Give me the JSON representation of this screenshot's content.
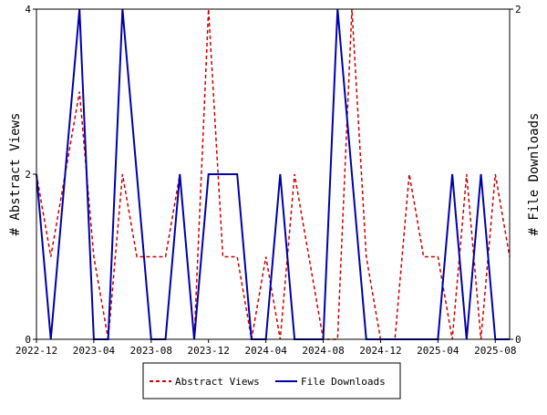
{
  "chart_data": {
    "type": "line",
    "title": "",
    "x": [
      "2022-12",
      "2023-01",
      "2023-02",
      "2023-03",
      "2023-04",
      "2023-05",
      "2023-06",
      "2023-07",
      "2023-08",
      "2023-09",
      "2023-10",
      "2023-11",
      "2023-12",
      "2024-01",
      "2024-02",
      "2024-03",
      "2024-04",
      "2024-05",
      "2024-06",
      "2024-07",
      "2024-08",
      "2024-09",
      "2024-10",
      "2024-11",
      "2024-12",
      "2025-01",
      "2025-02",
      "2025-03",
      "2025-04",
      "2025-05",
      "2025-06",
      "2025-07",
      "2025-08",
      "2025-09"
    ],
    "x_tick_labels": [
      "2022-12",
      "2023-04",
      "2023-08",
      "2023-12",
      "2024-04",
      "2024-08",
      "2024-12",
      "2025-04",
      "2025-08"
    ],
    "y_left": {
      "label": "# Abstract Views",
      "ylim": [
        0,
        4
      ],
      "ticks": [
        "0",
        "2",
        "4"
      ]
    },
    "y_right": {
      "label": "# File Downloads",
      "ylim": [
        0,
        2
      ],
      "ticks": [
        "0",
        "2"
      ]
    },
    "series": [
      {
        "name": "Abstract Views",
        "axis": "left",
        "color": "#cc0000",
        "style": "dashed",
        "values": [
          2,
          1,
          2,
          3,
          1,
          0,
          2,
          1,
          1,
          1,
          2,
          0,
          4,
          1,
          1,
          0,
          1,
          0,
          2,
          1,
          0,
          0,
          4,
          1,
          0,
          0,
          2,
          1,
          1,
          0,
          2,
          0,
          2,
          1
        ]
      },
      {
        "name": "File Downloads",
        "axis": "right",
        "color": "#0000aa",
        "style": "solid",
        "values": [
          1,
          0,
          1,
          2,
          0,
          0,
          2,
          1,
          0,
          0,
          1,
          0,
          1,
          1,
          1,
          0,
          0,
          1,
          0,
          0,
          0,
          2,
          1,
          0,
          0,
          0,
          0,
          0,
          0,
          1,
          0,
          1,
          0,
          0
        ]
      }
    ],
    "grid": false,
    "legend": "bottom"
  }
}
